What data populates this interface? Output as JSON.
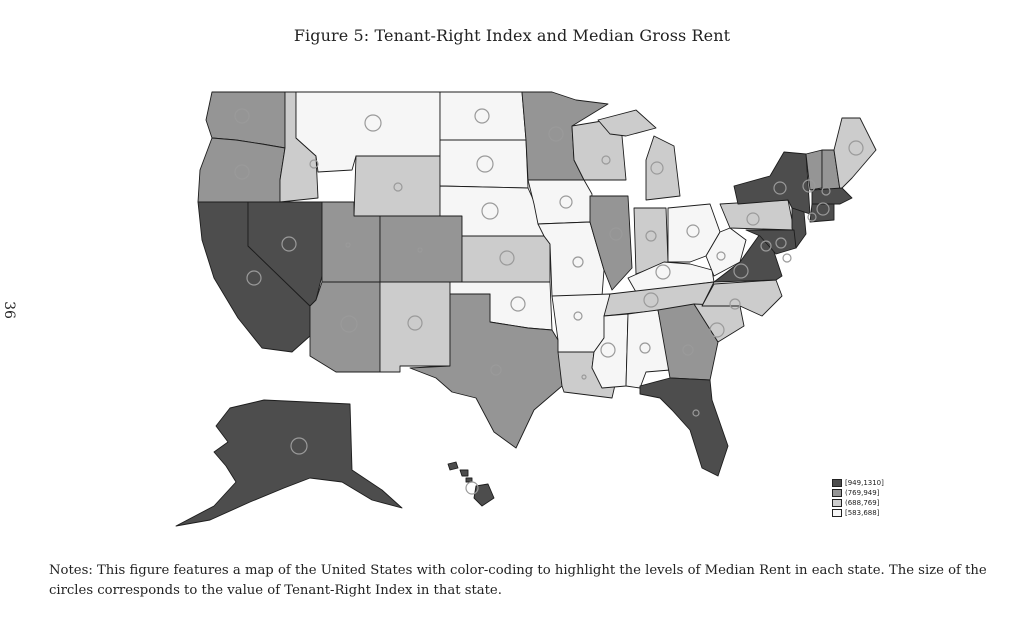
{
  "page_number": "36",
  "figure_title": "Figure 5: Tenant-Right Index and Median Gross Rent",
  "legend": [
    {
      "label": "[949,1310]",
      "color": "#4d4d4d"
    },
    {
      "label": "(769,949]",
      "color": "#959595"
    },
    {
      "label": "(688,769]",
      "color": "#cccccc"
    },
    {
      "label": "[583,688]",
      "color": "#f6f6f6"
    }
  ],
  "notes": "Notes: This figure features a map of the United States with color-coding to highlight the levels of Median Rent in each state. The size of the circles corresponds to the value of Tenant-Right Index in that state."
}
